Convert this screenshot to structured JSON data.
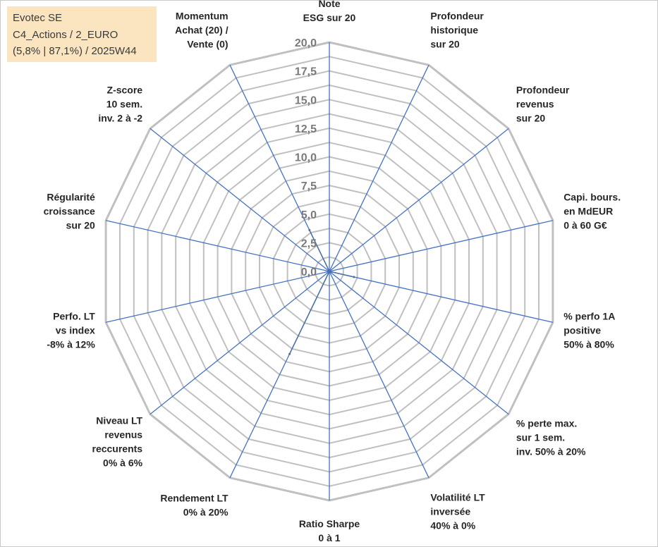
{
  "info_box": {
    "company": "Evotec SE",
    "portfolio": "C4_Actions / 2_EURO",
    "stats": "(5,8% | 87,1%) / 2025W44"
  },
  "colors": {
    "grid": "#c0c0c0",
    "spoke": "#4472c4",
    "fill": "#4a6fa5",
    "tick_text": "#7a7a7a",
    "label_text": "#262626",
    "info_bg": "#fbe5c0"
  },
  "chart_data": {
    "type": "radar",
    "title": "",
    "r_min": 0,
    "r_max": 20,
    "ticks": [
      "0,0",
      "2,5",
      "5,0",
      "7,5",
      "10,0",
      "12,5",
      "15,0",
      "17,5",
      "20,0"
    ],
    "categories": [
      [
        "Note",
        "ESG sur 20"
      ],
      [
        "Profondeur",
        "historique",
        "sur 20"
      ],
      [
        "Profondeur",
        "revenus",
        "sur 20"
      ],
      [
        "Capi. bours.",
        "en MdEUR",
        "0 à 60 G€"
      ],
      [
        "% perfo 1A",
        "positive",
        "50% à 80%"
      ],
      [
        "% perte max.",
        "sur 1 sem.",
        "inv. 50% à 20%"
      ],
      [
        "Volatilité LT",
        "inversée",
        "40% à 0%"
      ],
      [
        "Ratio Sharpe",
        "0 à 1"
      ],
      [
        "Rendement LT",
        "0% à 20%"
      ],
      [
        "Niveau LT",
        "revenus",
        "reccurents",
        "0% à 6%"
      ],
      [
        "Perfo. LT",
        "vs index",
        "-8% à 12%"
      ],
      [
        "Régularité",
        "croissance",
        "sur 20"
      ],
      [
        "Z-score",
        "10 sem.",
        "inv. 2 à -2"
      ],
      [
        "Momentum",
        "Achat (20) /",
        "Vente (0)"
      ]
    ],
    "series": [
      {
        "name": "Evotec SE",
        "values": [
          0,
          0,
          0,
          0,
          2.2,
          0,
          0,
          0,
          8.0,
          0,
          0,
          0,
          0,
          4.0
        ]
      }
    ]
  }
}
